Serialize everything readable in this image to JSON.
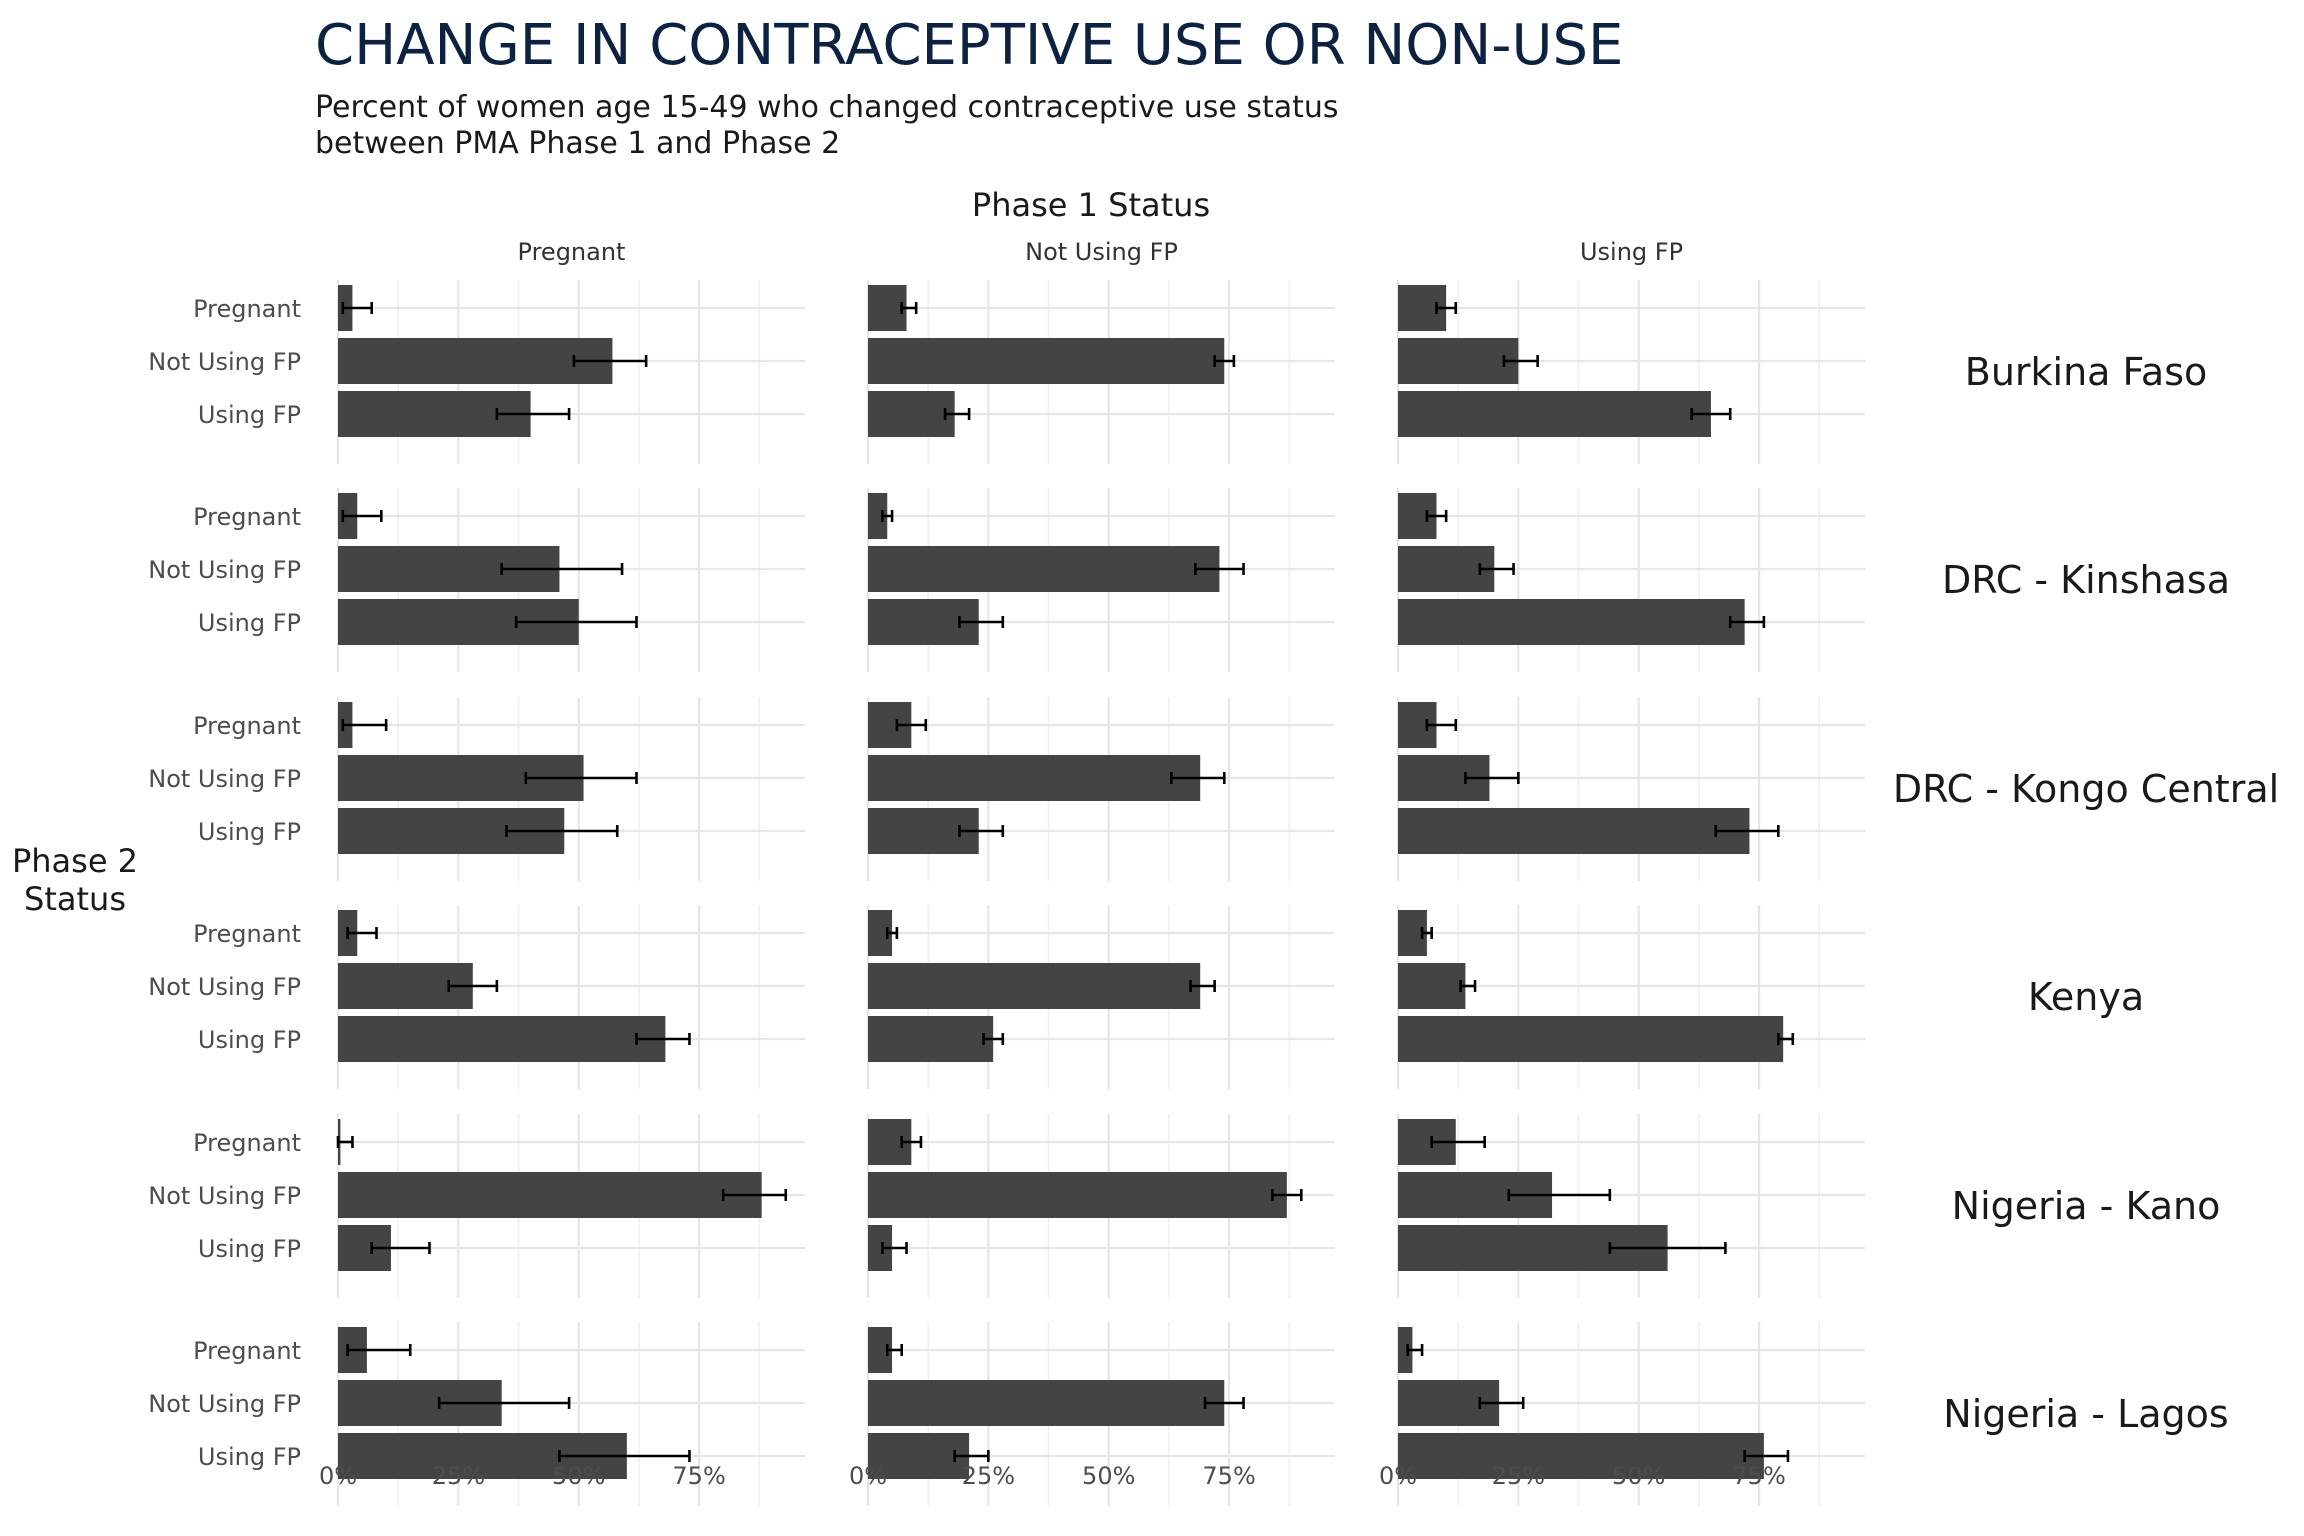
{
  "chart_data": {
    "type": "bar",
    "orientation": "horizontal",
    "title": "CHANGE IN CONTRACEPTIVE USE OR NON-USE",
    "subtitle_lines": [
      "Percent of women age 15-49 who changed contraceptive use status",
      "between PMA Phase 1 and Phase 2"
    ],
    "column_facet_title": "Phase 1 Status",
    "row_axis_title_lines": [
      "Phase 2",
      "Status"
    ],
    "column_facets": [
      "Pregnant",
      "Not Using FP",
      "Using FP"
    ],
    "row_facets": [
      "Burkina Faso",
      "DRC - Kinshasa",
      "DRC - Kongo Central",
      "Kenya",
      "Nigeria - Kano",
      "Nigeria - Lagos"
    ],
    "categories": [
      "Pregnant",
      "Not Using FP",
      "Using FP"
    ],
    "xlim": [
      0,
      0.97
    ],
    "x_ticks": [
      0,
      0.25,
      0.5,
      0.75
    ],
    "x_tick_labels": [
      "0%",
      "25%",
      "50%",
      "75%"
    ],
    "bar_color": "#444444",
    "grid": true,
    "panels": [
      {
        "row": "Burkina Faso",
        "col": "Pregnant",
        "values": [
          0.03,
          0.57,
          0.4
        ],
        "ci_low": [
          0.01,
          0.49,
          0.33
        ],
        "ci_high": [
          0.07,
          0.64,
          0.48
        ]
      },
      {
        "row": "Burkina Faso",
        "col": "Not Using FP",
        "values": [
          0.08,
          0.74,
          0.18
        ],
        "ci_low": [
          0.07,
          0.72,
          0.16
        ],
        "ci_high": [
          0.1,
          0.76,
          0.21
        ]
      },
      {
        "row": "Burkina Faso",
        "col": "Using FP",
        "values": [
          0.1,
          0.25,
          0.65
        ],
        "ci_low": [
          0.08,
          0.22,
          0.61
        ],
        "ci_high": [
          0.12,
          0.29,
          0.69
        ]
      },
      {
        "row": "DRC - Kinshasa",
        "col": "Pregnant",
        "values": [
          0.04,
          0.46,
          0.5
        ],
        "ci_low": [
          0.01,
          0.34,
          0.37
        ],
        "ci_high": [
          0.09,
          0.59,
          0.62
        ]
      },
      {
        "row": "DRC - Kinshasa",
        "col": "Not Using FP",
        "values": [
          0.04,
          0.73,
          0.23
        ],
        "ci_low": [
          0.03,
          0.68,
          0.19
        ],
        "ci_high": [
          0.05,
          0.78,
          0.28
        ]
      },
      {
        "row": "DRC - Kinshasa",
        "col": "Using FP",
        "values": [
          0.08,
          0.2,
          0.72
        ],
        "ci_low": [
          0.06,
          0.17,
          0.69
        ],
        "ci_high": [
          0.1,
          0.24,
          0.76
        ]
      },
      {
        "row": "DRC - Kongo Central",
        "col": "Pregnant",
        "values": [
          0.03,
          0.51,
          0.47
        ],
        "ci_low": [
          0.01,
          0.39,
          0.35
        ],
        "ci_high": [
          0.1,
          0.62,
          0.58
        ]
      },
      {
        "row": "DRC - Kongo Central",
        "col": "Not Using FP",
        "values": [
          0.09,
          0.69,
          0.23
        ],
        "ci_low": [
          0.06,
          0.63,
          0.19
        ],
        "ci_high": [
          0.12,
          0.74,
          0.28
        ]
      },
      {
        "row": "DRC - Kongo Central",
        "col": "Using FP",
        "values": [
          0.08,
          0.19,
          0.73
        ],
        "ci_low": [
          0.06,
          0.14,
          0.66
        ],
        "ci_high": [
          0.12,
          0.25,
          0.79
        ]
      },
      {
        "row": "Kenya",
        "col": "Pregnant",
        "values": [
          0.04,
          0.28,
          0.68
        ],
        "ci_low": [
          0.02,
          0.23,
          0.62
        ],
        "ci_high": [
          0.08,
          0.33,
          0.73
        ]
      },
      {
        "row": "Kenya",
        "col": "Not Using FP",
        "values": [
          0.05,
          0.69,
          0.26
        ],
        "ci_low": [
          0.04,
          0.67,
          0.24
        ],
        "ci_high": [
          0.06,
          0.72,
          0.28
        ]
      },
      {
        "row": "Kenya",
        "col": "Using FP",
        "values": [
          0.06,
          0.14,
          0.8
        ],
        "ci_low": [
          0.05,
          0.13,
          0.79
        ],
        "ci_high": [
          0.07,
          0.16,
          0.82
        ]
      },
      {
        "row": "Nigeria - Kano",
        "col": "Pregnant",
        "values": [
          0.005,
          0.88,
          0.11
        ],
        "ci_low": [
          0.0,
          0.8,
          0.07
        ],
        "ci_high": [
          0.03,
          0.93,
          0.19
        ]
      },
      {
        "row": "Nigeria - Kano",
        "col": "Not Using FP",
        "values": [
          0.09,
          0.87,
          0.05
        ],
        "ci_low": [
          0.07,
          0.84,
          0.03
        ],
        "ci_high": [
          0.11,
          0.9,
          0.08
        ]
      },
      {
        "row": "Nigeria - Kano",
        "col": "Using FP",
        "values": [
          0.12,
          0.32,
          0.56
        ],
        "ci_low": [
          0.07,
          0.23,
          0.44
        ],
        "ci_high": [
          0.18,
          0.44,
          0.68
        ]
      },
      {
        "row": "Nigeria - Lagos",
        "col": "Pregnant",
        "values": [
          0.06,
          0.34,
          0.6
        ],
        "ci_low": [
          0.02,
          0.21,
          0.46
        ],
        "ci_high": [
          0.15,
          0.48,
          0.73
        ]
      },
      {
        "row": "Nigeria - Lagos",
        "col": "Not Using FP",
        "values": [
          0.05,
          0.74,
          0.21
        ],
        "ci_low": [
          0.04,
          0.7,
          0.18
        ],
        "ci_high": [
          0.07,
          0.78,
          0.25
        ]
      },
      {
        "row": "Nigeria - Lagos",
        "col": "Using FP",
        "values": [
          0.03,
          0.21,
          0.76
        ],
        "ci_low": [
          0.02,
          0.17,
          0.72
        ],
        "ci_high": [
          0.05,
          0.26,
          0.81
        ]
      }
    ]
  }
}
